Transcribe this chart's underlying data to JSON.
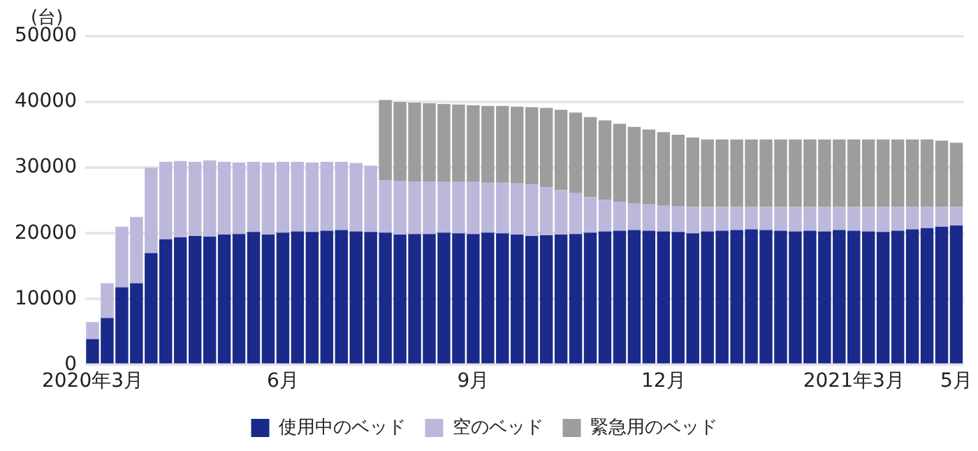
{
  "chart_data": {
    "type": "bar",
    "ylabel": "(台)",
    "stacked": true,
    "grid": "y",
    "legend": "bottom",
    "categories": [
      "2020年3月",
      null,
      null,
      null,
      null,
      null,
      null,
      null,
      null,
      null,
      null,
      null,
      null,
      "6月",
      null,
      null,
      null,
      null,
      null,
      null,
      null,
      null,
      null,
      null,
      null,
      null,
      "9月",
      null,
      null,
      null,
      null,
      null,
      null,
      null,
      null,
      null,
      null,
      null,
      null,
      "12月",
      null,
      null,
      null,
      null,
      null,
      null,
      null,
      null,
      null,
      null,
      null,
      null,
      "2021年3月",
      null,
      null,
      null,
      null,
      null,
      null,
      "5月"
    ],
    "ylim": [
      0,
      50000
    ],
    "yticks": [
      0,
      10000,
      20000,
      30000,
      40000,
      50000
    ],
    "series": [
      {
        "name": "使用中のベッド",
        "color": "#1a2a8a",
        "values": [
          3900,
          7100,
          11800,
          12400,
          17000,
          19100,
          19400,
          19600,
          19500,
          19800,
          19900,
          20200,
          19800,
          20100,
          20300,
          20200,
          20400,
          20500,
          20300,
          20200,
          20100,
          19800,
          19900,
          19900,
          20100,
          20000,
          19900,
          20100,
          20000,
          19800,
          19600,
          19700,
          19800,
          19900,
          20100,
          20300,
          20400,
          20500,
          20400,
          20300,
          20200,
          20000,
          20300,
          20400,
          20500,
          20600,
          20500,
          20400,
          20300,
          20400,
          20300,
          20500,
          20400,
          20300,
          20200,
          20400,
          20600,
          20800,
          21000,
          21200
        ]
      },
      {
        "name": "空のベッド",
        "color": "#bcb8dc",
        "values": [
          2600,
          5300,
          9200,
          10100,
          13000,
          11800,
          11600,
          11300,
          11600,
          11100,
          10900,
          10700,
          11000,
          10800,
          10600,
          10600,
          10500,
          10400,
          10400,
          10100,
          8000,
          8200,
          8000,
          8000,
          7700,
          7800,
          7900,
          7600,
          7700,
          7800,
          7800,
          7300,
          6800,
          6200,
          5400,
          4800,
          4400,
          4100,
          4000,
          3900,
          3900,
          4000,
          3700,
          3600,
          3500,
          3400,
          3500,
          3600,
          3700,
          3600,
          3700,
          3500,
          3600,
          3700,
          3800,
          3600,
          3400,
          3200,
          3000,
          2800
        ]
      },
      {
        "name": "緊急用のベッド",
        "color": "#9c9e9e",
        "values": [
          null,
          null,
          null,
          null,
          null,
          null,
          null,
          null,
          null,
          null,
          null,
          null,
          null,
          null,
          null,
          null,
          null,
          null,
          null,
          null,
          12200,
          12000,
          12000,
          11900,
          11900,
          11800,
          11700,
          11700,
          11700,
          11700,
          11800,
          12100,
          12200,
          12300,
          12200,
          12100,
          11900,
          11600,
          11400,
          11200,
          10900,
          10600,
          10300,
          10300,
          10300,
          10300,
          10300,
          10300,
          10300,
          10300,
          10300,
          10300,
          10300,
          10300,
          10300,
          10300,
          10300,
          10300,
          10100,
          9800
        ]
      }
    ]
  }
}
